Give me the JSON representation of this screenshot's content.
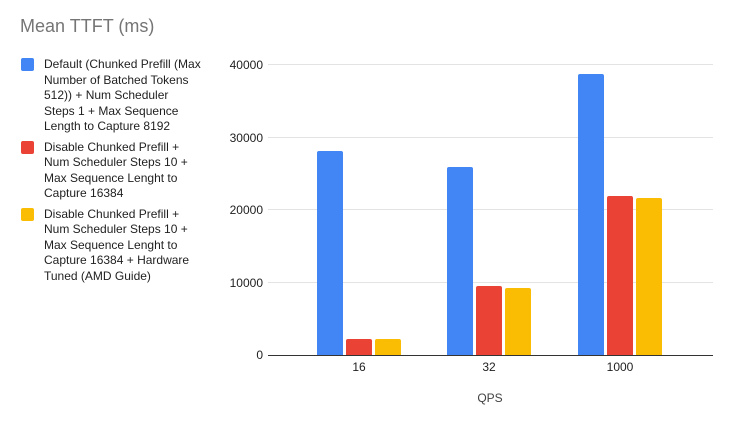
{
  "title": "Mean TTFT (ms)",
  "chart_data": {
    "type": "bar",
    "title": "Mean TTFT (ms)",
    "categories": [
      "16",
      "32",
      "1000"
    ],
    "series": [
      {
        "name": "Default (Chunked Prefill (Max Number of Batched Tokens 512)) + Num Scheduler Steps 1 + Max Sequence Length to Capture 8192",
        "color": "#4285F4",
        "values": [
          28200,
          26000,
          38800
        ]
      },
      {
        "name": "Disable Chunked Prefill + Num Scheduler Steps 10 + Max Sequence Lenght to Capture 16384",
        "color": "#EA4335",
        "values": [
          2200,
          9500,
          21900
        ]
      },
      {
        "name": "Disable Chunked Prefill + Num Scheduler Steps 10 + Max Sequence Lenght to Capture 16384 + Hardware Tuned (AMD Guide)",
        "color": "#FBBC04",
        "values": [
          2150,
          9300,
          21600
        ]
      }
    ],
    "xlabel": "QPS",
    "ylabel": "",
    "ylim": [
      0,
      40000
    ],
    "yticks": [
      "0",
      "10000",
      "20000",
      "30000",
      "40000"
    ],
    "grid": true,
    "legend_position": "left",
    "axis_color": "#333333",
    "gridline_color": "#e3e3e3",
    "title_color": "#757575",
    "label_color": "#1f1f1f"
  }
}
